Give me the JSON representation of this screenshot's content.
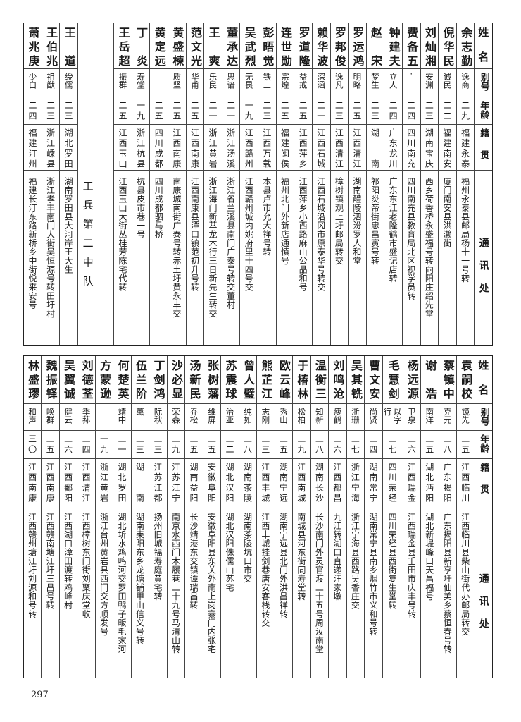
{
  "header": {
    "name": "姓名",
    "alias": "别号",
    "age": "年龄",
    "origin": "籍贯",
    "address": "通讯处"
  },
  "top": {
    "section_label": "工兵第二中队",
    "rows_before_label": [
      {
        "name": "余志勤",
        "alias": "逸商",
        "age": "二九",
        "origin": "福建永泰",
        "address": "福州永泰县邮局杨十一号转"
      },
      {
        "name": "倪华民",
        "alias": "诚民",
        "age": "二二",
        "origin": "福建南安",
        "address": "厦门南安县洪濑街"
      },
      {
        "name": "刘灿湘",
        "alias": "安渊",
        "age": "二三",
        "origin": "湖南宝庆",
        "address": "西乡荷香桥永盛福号转向阳庄绍先堂"
      },
      {
        "name": "费备五",
        "alias": "·",
        "age": "二四",
        "origin": "四川南充",
        "address": "四川南充县教育局北区视学员转"
      },
      {
        "name": "钟建夫",
        "alias": "立人",
        "age": "二四",
        "origin": "广东龙川",
        "address": "广东东江老隆鹤市盛记店转"
      },
      {
        "name": "赵宋",
        "alias": "梦生",
        "age": "二三",
        "origin": "湖南",
        "address": "祁阳炎帝街忠昌寅号转"
      },
      {
        "name": "罗运鸿",
        "alias": "明略",
        "age": "二五",
        "origin": "江西清江",
        "address": "湖南醴陵泗汾罗人和堂"
      },
      {
        "name": "罗邦俊",
        "alias": "逸凡",
        "age": "二三",
        "origin": "江西清江",
        "address": "樟树镇观上圩邮局转交"
      },
      {
        "name": "赖华波",
        "alias": "深涵",
        "age": "二一",
        "origin": "江西石城",
        "address": "江西石城沿冈市原泰华号转交"
      },
      {
        "name": "罗道隆",
        "alias": "益戒",
        "age": "二五",
        "origin": "江西萍乡",
        "address": "江西萍乡小西路麻山公晶和号"
      },
      {
        "name": "连世勋",
        "alias": "宗煌",
        "age": "二五",
        "origin": "福建闽侯",
        "address": "福州北门外新店通慎号"
      },
      {
        "name": "彭晤觉",
        "alias": "铁三",
        "age": "二三",
        "origin": "江西万载",
        "address": "本县卢市允大祥号转"
      },
      {
        "name": "吴武烈",
        "alias": "无畏",
        "age": "一九",
        "origin": "江西赣州",
        "address": "江西赣州城内姚府里十四号交"
      },
      {
        "name": "董承达",
        "alias": "思谙",
        "age": "二一",
        "origin": "浙江汤溪",
        "address": "浙江省兰溪县南门广泰号转交董村"
      },
      {
        "name": "王爽",
        "alias": "乐民",
        "age": "二一",
        "origin": "浙江黄岩",
        "address": "浙江海门新萃龙木行王日新先生转交"
      },
      {
        "name": "范文光",
        "alias": "华甫",
        "age": "二五",
        "origin": "江西南康",
        "address": "江西南康县潭口镇范初升号转"
      },
      {
        "name": "黄盛楝",
        "alias": "质坚",
        "age": "二五",
        "origin": "江西南康",
        "address": "南康城南街广泰号转赤土圩黄永丰交"
      },
      {
        "name": "黄定远",
        "alias": "",
        "age": "二五",
        "origin": "四川成都",
        "address": "四川成都驷马桥"
      },
      {
        "name": "丁炎",
        "alias": "寿堂",
        "age": "一九",
        "origin": "浙江杭县",
        "address": "杭县皮市巷一号"
      },
      {
        "name": "王岳超",
        "alias": "振群",
        "age": "二五",
        "origin": "江西玉山",
        "address": "江西玉山大街丛桂芳陈宅代转"
      }
    ],
    "rows_after_label": [
      {
        "name": "王道",
        "alias": "绶儒",
        "age": "二三",
        "origin": "湖北罗田",
        "address": "湖南罗田县大河岸王大生"
      },
      {
        "name": "王伯兆",
        "alias": "祖猷",
        "age": "二三",
        "origin": "浙江嵊县",
        "address": "浙江孝丰南门大街吴恒源号转田圩村"
      },
      {
        "name": "萧兆庚",
        "alias": "少白",
        "age": "二四",
        "origin": "福建汀州",
        "address": "福建长汀东路新桥乡中街悦来安号"
      }
    ]
  },
  "bottom": {
    "rows": [
      {
        "name": "袁嗣校",
        "alias": "镜先",
        "age": "二五",
        "origin": "江西临川",
        "address": "江西临川县柴山街代办邮局转交"
      },
      {
        "name": "蔡镇中",
        "alias": "克元",
        "age": "二八",
        "origin": "广东揭阳",
        "address": "广东揭阳县新亨圩仙美乡蔡恒春号转"
      },
      {
        "name": "谢浩",
        "alias": "南洋",
        "age": "二五",
        "origin": "湖北沔阳",
        "address": "湖北新堤峰口天昌福号"
      },
      {
        "name": "杨远源",
        "alias": "卫泉",
        "age": "二六",
        "origin": "江西瑞金",
        "address": "江西瑞金县壬田市庆丰号转"
      },
      {
        "name": "毛慧剑",
        "alias": "以字行",
        "age": "二七",
        "origin": "四川荣经",
        "address": "四川荣经县西街复生堂转"
      },
      {
        "name": "曹文安",
        "alias": "尚贤",
        "age": "二四",
        "origin": "湖南常宁",
        "address": "湖南常宁县南乡烟竹市义和号转"
      },
      {
        "name": "吴其铣",
        "alias": "浙珊",
        "age": "二七",
        "origin": "浙江宁海",
        "address": "浙江宁海县西路吴香庄交"
      },
      {
        "name": "刘鸣沧",
        "alias": "瘦鹤",
        "age": "二六",
        "origin": "江西都昌",
        "address": "九江转湖口直递汪家墩"
      },
      {
        "name": "温衡三",
        "alias": "知新",
        "age": "二八",
        "origin": "湖南长沙",
        "address": "长沙南门外灵官渡二十五号周汝南堂"
      },
      {
        "name": "于椿林",
        "alias": "松柏",
        "age": "二九",
        "origin": "江西南城",
        "address": "南城县河东街同寿堂转"
      },
      {
        "name": "欧云峰",
        "alias": "秀山",
        "age": "二五",
        "origin": "湖南宁远",
        "address": "湖南宁远县北门外洪昌祥转"
      },
      {
        "name": "熊芷江",
        "alias": "志刚",
        "age": "二三",
        "origin": "江西丰城",
        "address": "江西丰城挂剑巷唐安客栈转交"
      },
      {
        "name": "曾人璧",
        "alias": "纯如",
        "age": "二八",
        "origin": "湖南茶陵",
        "address": "湖南茶陵坑口市交"
      },
      {
        "name": "苏震球",
        "alias": "治亚",
        "age": "二二",
        "origin": "湖北汉阳",
        "address": "湖北汉阳侏儒山苏宅"
      },
      {
        "name": "张树藩",
        "alias": "维屏",
        "age": "二五",
        "origin": "安徽阜阳",
        "address": "安徽阜阳县东关外南上岗寨门内张宅"
      },
      {
        "name": "汤新民",
        "alias": "乔松",
        "age": "二五",
        "origin": "湖南益阳",
        "address": "长沙靖港东交镇谭瑞昌转"
      },
      {
        "name": "沙必显",
        "alias": "荣森",
        "age": "二九",
        "origin": "江苏江宁",
        "address": "南京水西门木履巷二十九号马清山转"
      },
      {
        "name": "丁剑鸿",
        "alias": "际秋",
        "age": "二三",
        "origin": "江苏江都",
        "address": "扬州旧城福寿庭黄宅转"
      },
      {
        "name": "伍兰阶",
        "alias": "薰",
        "age": "二三",
        "origin": "湖南",
        "address": "湖南耒阳东乡龙塘铺甲山信义号转"
      },
      {
        "name": "何楚英",
        "alias": "靖中",
        "age": "二一",
        "origin": "湖北罗田",
        "address": "湖北圻水鸡鸣河交罗田鸭子畈毛家河"
      },
      {
        "name": "方蒙逊",
        "alias": "",
        "age": "一九",
        "origin": "浙江黄岩",
        "address": "浙江台州黄岩县西门交方顺发号"
      },
      {
        "name": "刘德荃",
        "alias": "季荪",
        "age": "二四",
        "origin": "江西清江",
        "address": "江西樟树东门街刘聚庆堂收"
      },
      {
        "name": "吴翼诚",
        "alias": "健云",
        "age": "二六",
        "origin": "江西鄱阳",
        "address": "江西湖口漳田渡转鸡峰村"
      },
      {
        "name": "魏振铎",
        "alias": "唤群",
        "age": "二五",
        "origin": "江西南康",
        "address": "江西赣南塘江圩三昌号转"
      },
      {
        "name": "林盛璆",
        "alias": "和声",
        "age": "三〇",
        "origin": "江西南康",
        "address": "江西赣州塘江圩刘源和号转"
      }
    ]
  },
  "page_number": "297"
}
